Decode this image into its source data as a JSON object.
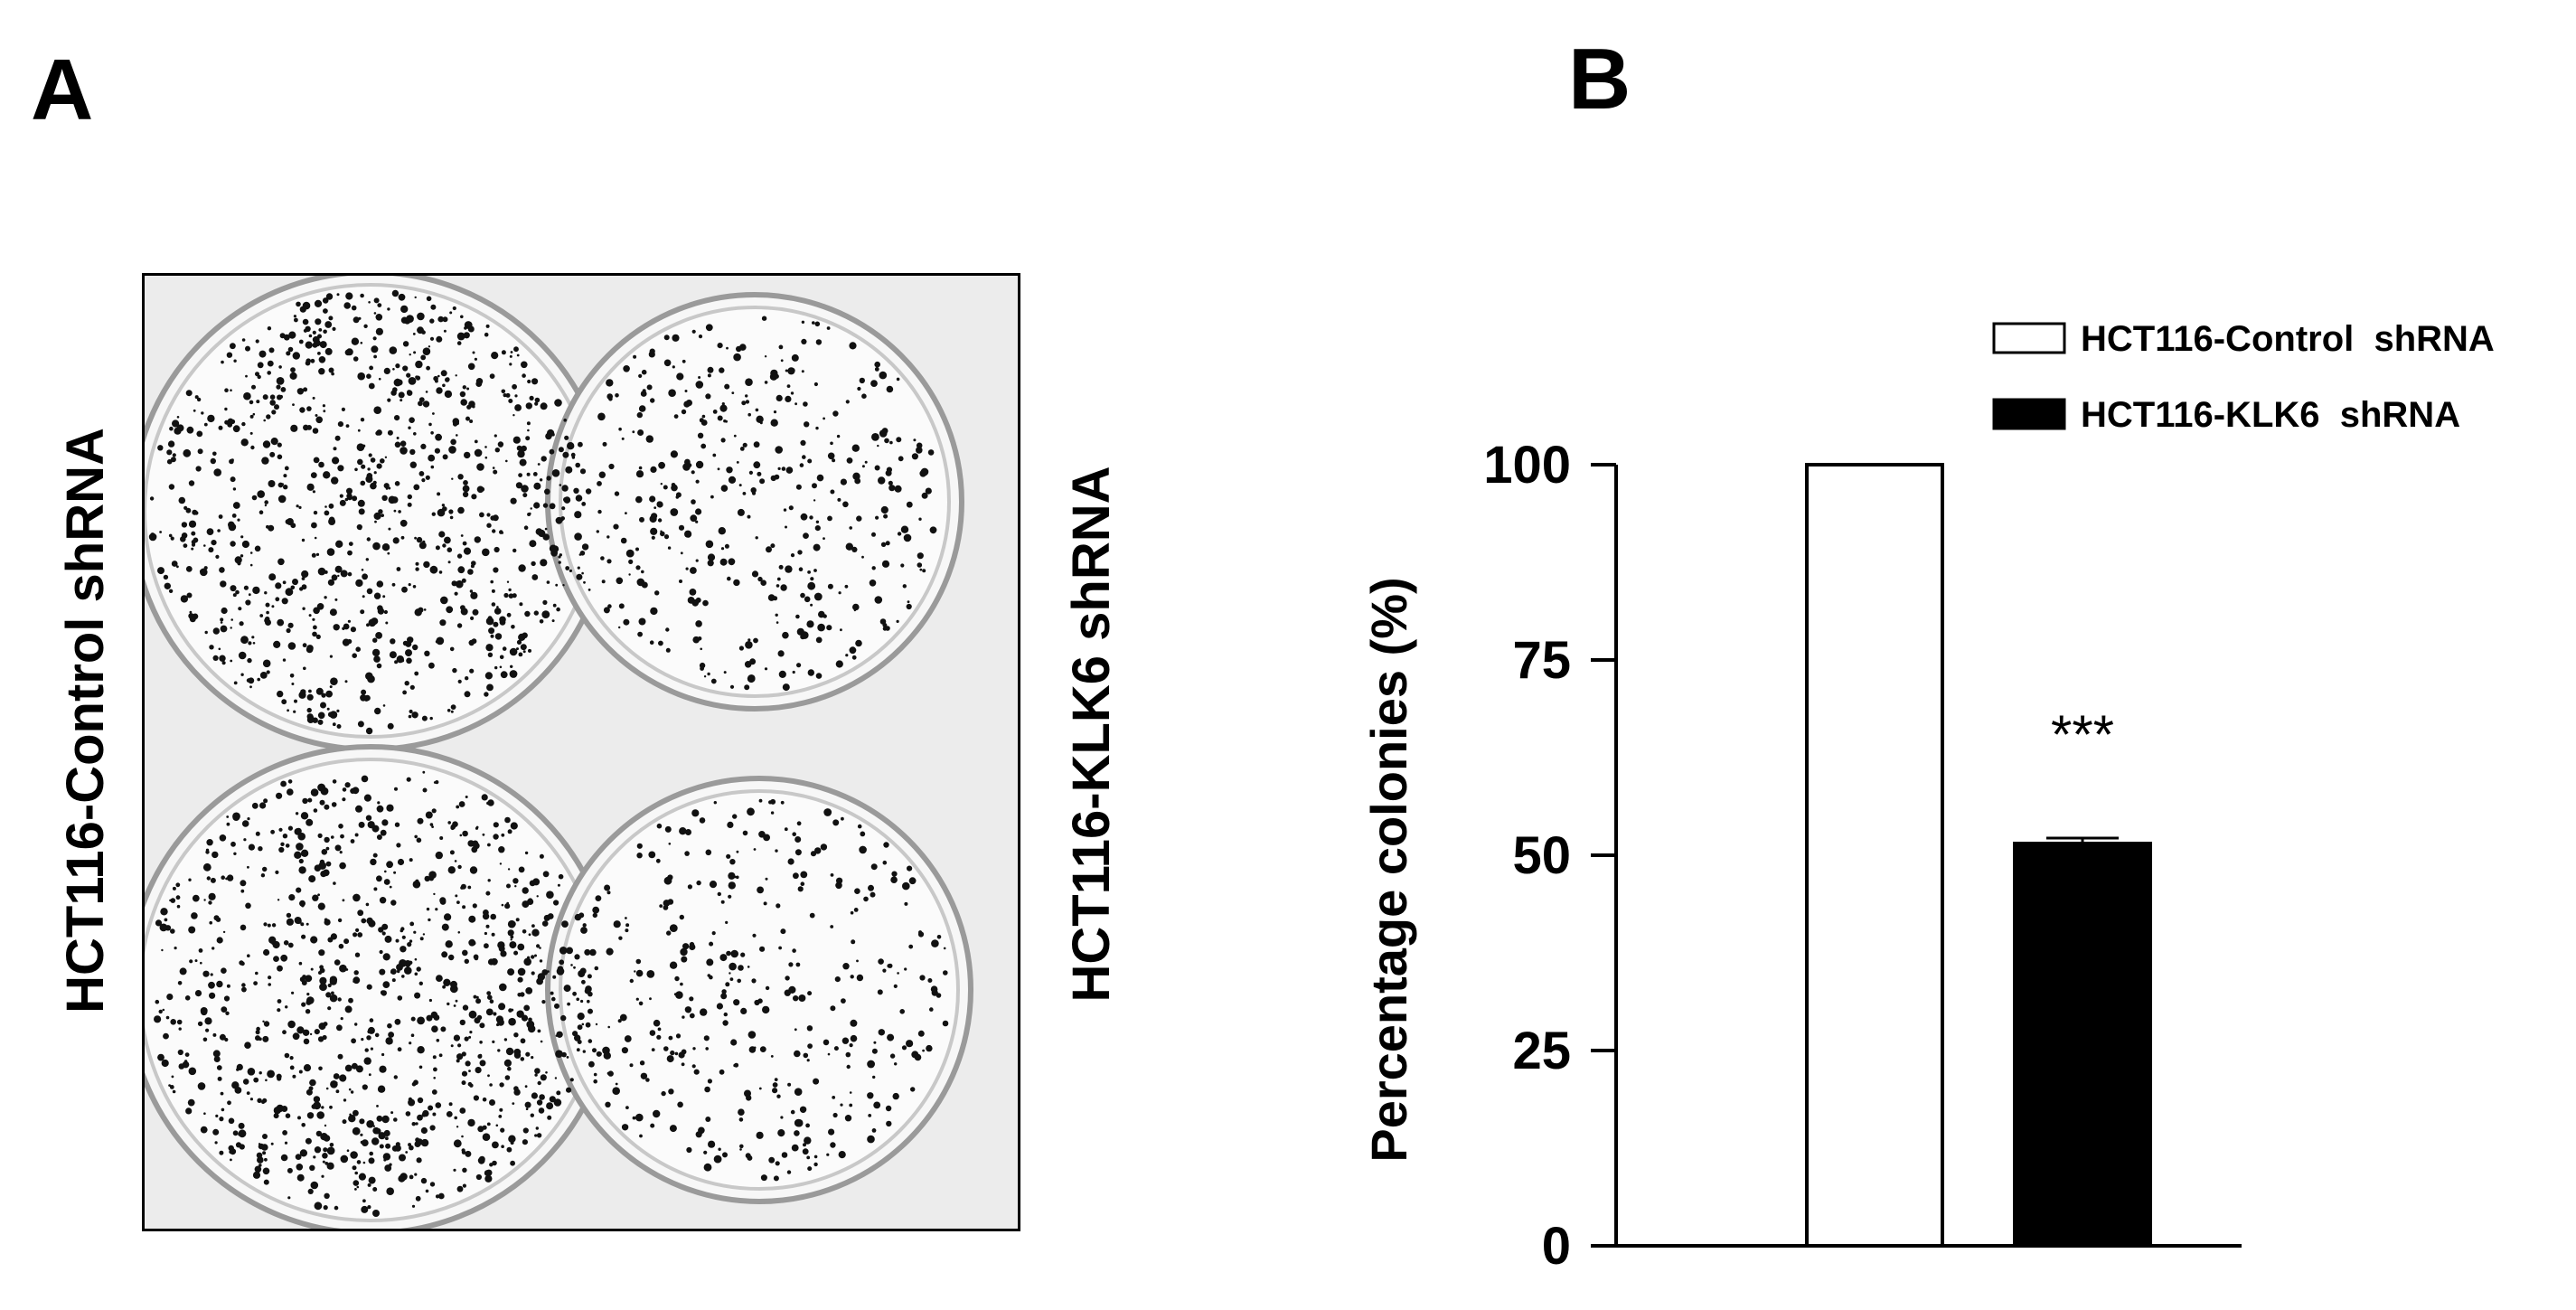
{
  "panels": {
    "a": {
      "letter": "A",
      "left_label": "HCT116-Control shRNA",
      "right_label": "HCT116-KLK6 shRNA"
    },
    "b": {
      "letter": "B"
    }
  },
  "chart_data": {
    "type": "bar",
    "title": "",
    "xlabel": "",
    "ylabel": "Percentage colonies (%)",
    "ylim": [
      0,
      100
    ],
    "yticks": [
      0,
      25,
      50,
      75,
      100
    ],
    "categories": [
      "HCT116-Control  shRNA",
      "HCT116-KLK6  shRNA"
    ],
    "values": [
      100,
      51.5
    ],
    "errors": [
      0,
      0.7
    ],
    "bar_fills": [
      "#ffffff",
      "#000000"
    ],
    "annotations": [
      {
        "category": "HCT116-KLK6  shRNA",
        "text": "***"
      }
    ],
    "legend": {
      "placement": "top-right",
      "entries": [
        {
          "label": "HCT116-Control  shRNA",
          "fill": "#ffffff"
        },
        {
          "label": "HCT116-KLK6  shRNA",
          "fill": "#000000"
        }
      ]
    },
    "grid": false
  }
}
